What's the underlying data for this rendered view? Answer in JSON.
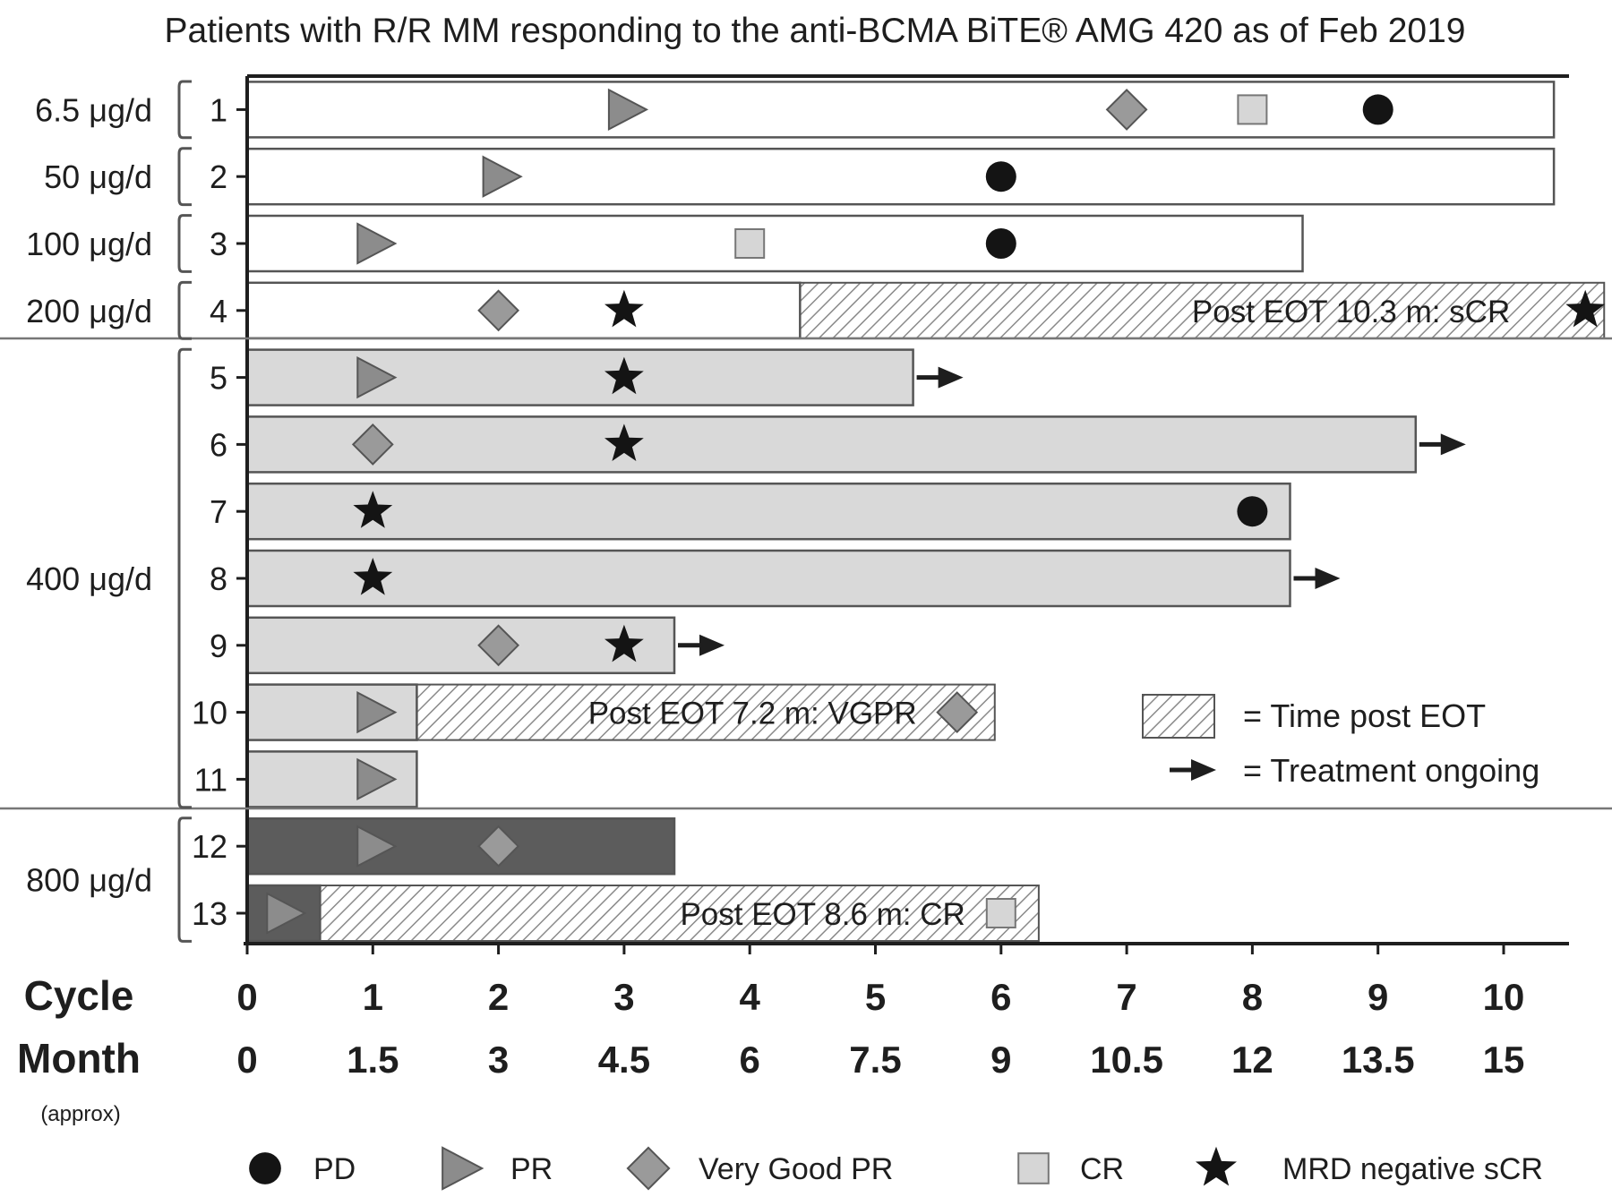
{
  "chart_data": {
    "type": "swimmer",
    "title": "Patients with R/R MM responding to the anti-BCMA BiTE® AMG 420 as of Feb 2019",
    "x_axis": {
      "row_labels": [
        "Cycle",
        "Month"
      ],
      "note": "(approx)",
      "range_cycles": [
        0,
        10.5
      ],
      "ticks": [
        {
          "cycle": "0",
          "month": "0"
        },
        {
          "cycle": "1",
          "month": "1.5"
        },
        {
          "cycle": "2",
          "month": "3"
        },
        {
          "cycle": "3",
          "month": "4.5"
        },
        {
          "cycle": "4",
          "month": "6"
        },
        {
          "cycle": "5",
          "month": "7.5"
        },
        {
          "cycle": "6",
          "month": "9"
        },
        {
          "cycle": "7",
          "month": "10.5"
        },
        {
          "cycle": "8",
          "month": "12"
        },
        {
          "cycle": "9",
          "month": "13.5"
        },
        {
          "cycle": "10",
          "month": "15"
        }
      ]
    },
    "dose_groups": [
      {
        "label": "6.5 μg/d",
        "patients": [
          "1"
        ]
      },
      {
        "label": "50 μg/d",
        "patients": [
          "2"
        ]
      },
      {
        "label": "100 μg/d",
        "patients": [
          "3"
        ]
      },
      {
        "label": "200 μg/d",
        "patients": [
          "4"
        ]
      },
      {
        "label": "400 μg/d",
        "patients": [
          "5",
          "6",
          "7",
          "8",
          "9",
          "10",
          "11"
        ]
      },
      {
        "label": "800 μg/d",
        "patients": [
          "12",
          "13"
        ]
      }
    ],
    "patients": [
      {
        "id": "1",
        "dose": "6.5 μg/d",
        "treatment_end": 10.4,
        "fill": "white",
        "post_eot": null,
        "ongoing": false,
        "events": [
          {
            "type": "PR",
            "x": 3.0
          },
          {
            "type": "VGPR",
            "x": 7.0
          },
          {
            "type": "CR",
            "x": 8.0
          },
          {
            "type": "PD",
            "x": 9.0
          }
        ]
      },
      {
        "id": "2",
        "dose": "50 μg/d",
        "treatment_end": 10.4,
        "fill": "white",
        "post_eot": null,
        "ongoing": false,
        "events": [
          {
            "type": "PR",
            "x": 2.0
          },
          {
            "type": "PD",
            "x": 6.0
          }
        ]
      },
      {
        "id": "3",
        "dose": "100 μg/d",
        "treatment_end": 8.4,
        "fill": "white",
        "post_eot": null,
        "ongoing": false,
        "events": [
          {
            "type": "PR",
            "x": 1.0
          },
          {
            "type": "CR",
            "x": 4.0
          },
          {
            "type": "PD",
            "x": 6.0
          }
        ]
      },
      {
        "id": "4",
        "dose": "200 μg/d",
        "treatment_end": 4.4,
        "fill": "white",
        "post_eot": {
          "end": 10.8,
          "label": "Post  EOT 10.3 m: sCR",
          "marker": "MRD",
          "marker_x": 10.65
        },
        "ongoing": false,
        "events": [
          {
            "type": "VGPR",
            "x": 2.0
          },
          {
            "type": "MRD",
            "x": 3.0
          }
        ]
      },
      {
        "id": "5",
        "dose": "400 μg/d",
        "treatment_end": 5.3,
        "fill": "light",
        "post_eot": null,
        "ongoing": true,
        "events": [
          {
            "type": "PR",
            "x": 1.0
          },
          {
            "type": "MRD",
            "x": 3.0
          }
        ]
      },
      {
        "id": "6",
        "dose": "400 μg/d",
        "treatment_end": 9.3,
        "fill": "light",
        "post_eot": null,
        "ongoing": true,
        "events": [
          {
            "type": "VGPR",
            "x": 1.0
          },
          {
            "type": "MRD",
            "x": 3.0
          }
        ]
      },
      {
        "id": "7",
        "dose": "400 μg/d",
        "treatment_end": 8.3,
        "fill": "light",
        "post_eot": null,
        "ongoing": false,
        "events": [
          {
            "type": "MRD",
            "x": 1.0
          },
          {
            "type": "PD",
            "x": 8.0
          }
        ]
      },
      {
        "id": "8",
        "dose": "400 μg/d",
        "treatment_end": 8.3,
        "fill": "light",
        "post_eot": null,
        "ongoing": true,
        "events": [
          {
            "type": "MRD",
            "x": 1.0
          }
        ]
      },
      {
        "id": "9",
        "dose": "400 μg/d",
        "treatment_end": 3.4,
        "fill": "light",
        "post_eot": null,
        "ongoing": true,
        "events": [
          {
            "type": "VGPR",
            "x": 2.0
          },
          {
            "type": "MRD",
            "x": 3.0
          }
        ]
      },
      {
        "id": "10",
        "dose": "400 μg/d",
        "treatment_end": 1.35,
        "fill": "light",
        "post_eot": {
          "end": 5.95,
          "label": "Post EOT 7.2 m: VGPR",
          "marker": "VGPR",
          "marker_x": 5.65
        },
        "ongoing": false,
        "events": [
          {
            "type": "PR",
            "x": 1.0
          }
        ]
      },
      {
        "id": "11",
        "dose": "400 μg/d",
        "treatment_end": 1.35,
        "fill": "light",
        "post_eot": null,
        "ongoing": false,
        "events": [
          {
            "type": "PR",
            "x": 1.0
          }
        ]
      },
      {
        "id": "12",
        "dose": "800 μg/d",
        "treatment_end": 3.4,
        "fill": "dark",
        "post_eot": null,
        "ongoing": false,
        "events": [
          {
            "type": "PR",
            "x": 1.0
          },
          {
            "type": "VGPR",
            "x": 2.0
          }
        ]
      },
      {
        "id": "13",
        "dose": "800 μg/d",
        "treatment_end": 0.58,
        "fill": "dark",
        "post_eot": {
          "end": 6.3,
          "label": "Post EOT 8.6 m: CR",
          "marker": "CR",
          "marker_x": 6.0
        },
        "ongoing": false,
        "events": [
          {
            "type": "PR",
            "x": 0.28
          }
        ]
      }
    ],
    "inline_legend": [
      {
        "key": "post_eot",
        "label": "= Time post  EOT"
      },
      {
        "key": "ongoing",
        "label": "= Treatment ongoing"
      }
    ],
    "legend": [
      {
        "key": "PD",
        "label": "PD"
      },
      {
        "key": "PR",
        "label": "PR"
      },
      {
        "key": "VGPR",
        "label": "Very Good PR"
      },
      {
        "key": "CR",
        "label": "CR"
      },
      {
        "key": "MRD",
        "label": "MRD negative sCR"
      }
    ],
    "colors": {
      "treatment_white": "#ffffff",
      "treatment_light": "#d9d9d9",
      "treatment_dark": "#5c5c5c",
      "outline": "#1e1e1e",
      "pd": "#141414",
      "pr": "#8c8c8c",
      "vgpr": "#9a9a9a",
      "cr": "#d6d6d6",
      "mrd": "#141414",
      "hatch": "#8a8a8a"
    }
  }
}
